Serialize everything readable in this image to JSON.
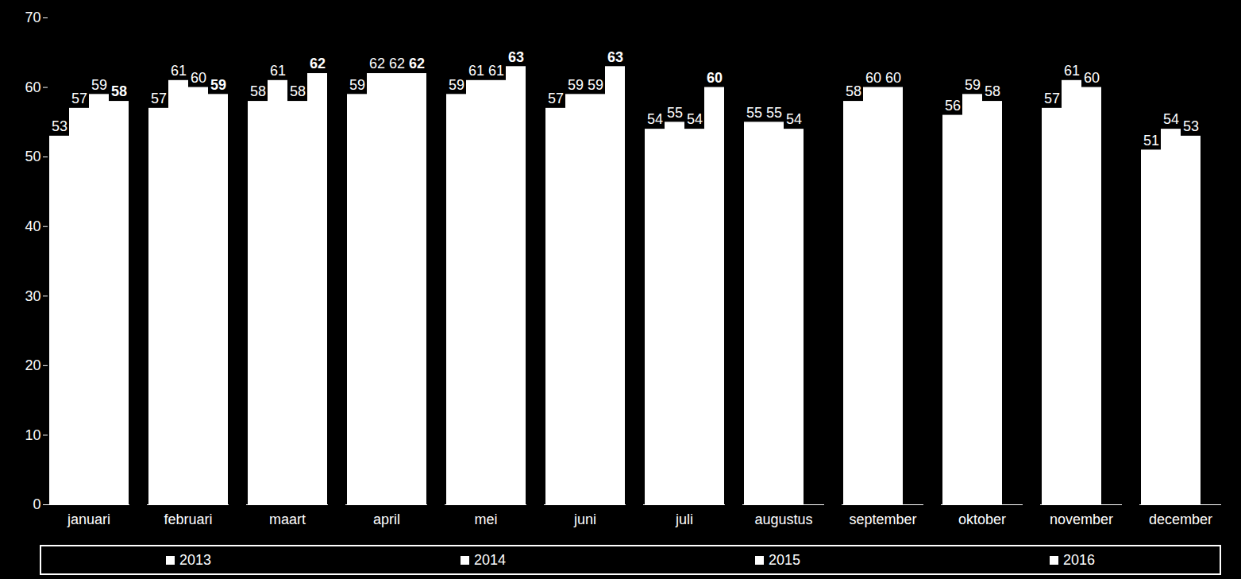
{
  "chart_data": {
    "type": "bar",
    "categories": [
      "januari",
      "februari",
      "maart",
      "april",
      "mei",
      "juni",
      "juli",
      "augustus",
      "september",
      "oktober",
      "november",
      "december"
    ],
    "series": [
      {
        "name": "2013",
        "color": "#ffffff",
        "values": [
          53,
          57,
          58,
          59,
          59,
          57,
          54,
          55,
          58,
          56,
          57,
          51
        ]
      },
      {
        "name": "2014",
        "color": "#ffffff",
        "values": [
          57,
          61,
          61,
          62,
          61,
          59,
          55,
          55,
          60,
          59,
          61,
          54
        ]
      },
      {
        "name": "2015",
        "color": "#ffffff",
        "values": [
          59,
          60,
          58,
          62,
          61,
          59,
          54,
          54,
          60,
          58,
          60,
          53
        ]
      },
      {
        "name": "2016",
        "color": "#ffffff",
        "values": [
          58,
          59,
          62,
          62,
          63,
          63,
          60,
          null,
          null,
          null,
          null,
          null
        ]
      }
    ],
    "ylim": [
      0,
      70
    ],
    "yticks": [
      0,
      10,
      20,
      30,
      40,
      50,
      60,
      70
    ],
    "grid": false,
    "legend": "bottom",
    "data_labels": true
  }
}
